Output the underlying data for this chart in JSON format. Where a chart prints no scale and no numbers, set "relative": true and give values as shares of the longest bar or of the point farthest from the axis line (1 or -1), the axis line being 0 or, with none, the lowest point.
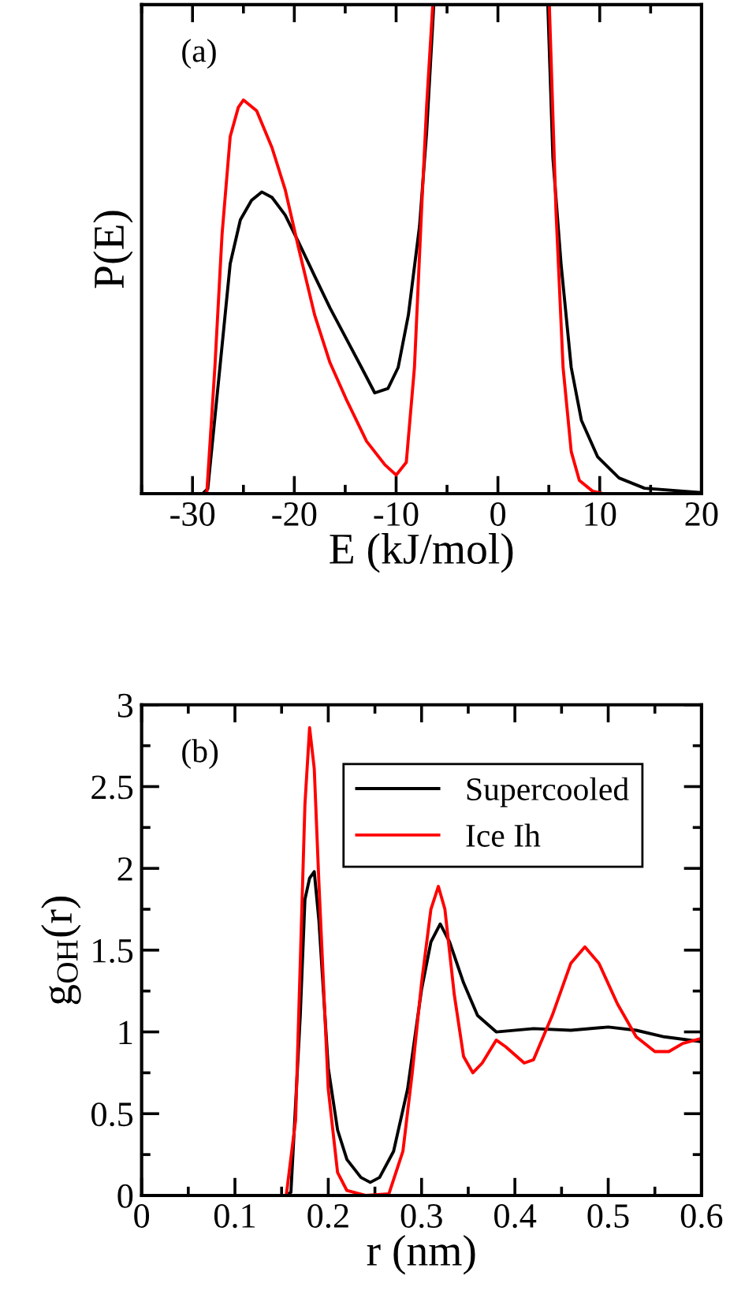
{
  "chart_data": [
    {
      "type": "line",
      "relative": true,
      "xlabel": "E (kJ/mol)",
      "ylabel": "P(E)",
      "xlim": [
        -35,
        20
      ],
      "xticks": [
        -30,
        -20,
        -10,
        0,
        10,
        20
      ],
      "tick_labels": "x",
      "grid": false,
      "legend": false,
      "annotations": [
        "(a)"
      ],
      "series": [
        {
          "color": "#000000",
          "x": [
            -35,
            -29,
            -28.5,
            -27.3,
            -26.3,
            -25.3,
            -24.2,
            -23.2,
            -22.2,
            -20.9,
            -19.6,
            -18.0,
            -16.5,
            -14.9,
            -13.4,
            -12.1,
            -10.8,
            -9.8,
            -8.8,
            -7.7,
            -7.0,
            -6.3,
            0,
            4.9,
            5.4,
            6.2,
            7.2,
            8.2,
            9.8,
            11.9,
            14.4,
            20
          ],
          "values": [
            0,
            0,
            0.01,
            0.26,
            0.47,
            0.56,
            0.6,
            0.617,
            0.606,
            0.57,
            0.515,
            0.445,
            0.38,
            0.317,
            0.258,
            0.206,
            0.215,
            0.258,
            0.365,
            0.547,
            0.74,
            1.0,
            null,
            1.0,
            0.687,
            0.47,
            0.258,
            0.15,
            0.075,
            0.032,
            0.011,
            0.002
          ]
        },
        {
          "color": "#ff0000",
          "x": [
            -35,
            -28.6,
            -27.8,
            -27.1,
            -26.3,
            -25.5,
            -25.0,
            -23.7,
            -22.2,
            -20.9,
            -19.6,
            -18.0,
            -16.5,
            -14.9,
            -12.9,
            -11.1,
            -10.0,
            -9.0,
            -8.2,
            -7.5,
            -7.0,
            -6.4,
            0,
            5.05,
            5.7,
            6.4,
            7.2,
            8.0,
            9.3,
            10.3,
            20
          ],
          "values": [
            0,
            0,
            0.26,
            0.53,
            0.73,
            0.79,
            0.805,
            0.783,
            0.708,
            0.622,
            0.504,
            0.365,
            0.268,
            0.193,
            0.107,
            0.059,
            0.038,
            0.064,
            0.258,
            0.58,
            0.794,
            1.0,
            null,
            1.0,
            0.58,
            0.258,
            0.086,
            0.027,
            0.005,
            0,
            0
          ]
        }
      ]
    },
    {
      "type": "line",
      "xlabel": "r (nm)",
      "ylabel": "g$_{OH}$(r)",
      "xlim": [
        0,
        0.6
      ],
      "xticks": [
        0,
        0.1,
        0.2,
        0.3,
        0.4,
        0.5,
        0.6
      ],
      "ylim": [
        0,
        3
      ],
      "yticks": [
        0,
        0.5,
        1,
        1.5,
        2,
        2.5,
        3
      ],
      "grid": false,
      "legend": "top right",
      "annotations": [
        "(b)"
      ],
      "series": [
        {
          "name": "Supercooled",
          "color": "#000000",
          "x": [
            0,
            0.155,
            0.16,
            0.17,
            0.175,
            0.18,
            0.185,
            0.19,
            0.2,
            0.21,
            0.22,
            0.235,
            0.245,
            0.255,
            0.27,
            0.285,
            0.3,
            0.31,
            0.32,
            0.33,
            0.345,
            0.36,
            0.38,
            0.42,
            0.46,
            0.5,
            0.53,
            0.56,
            0.6
          ],
          "values": [
            0,
            0,
            0.02,
            1.1,
            1.81,
            1.94,
            1.98,
            1.68,
            0.78,
            0.4,
            0.22,
            0.11,
            0.08,
            0.11,
            0.27,
            0.65,
            1.26,
            1.55,
            1.66,
            1.55,
            1.3,
            1.1,
            1.0,
            1.02,
            1.01,
            1.03,
            1.01,
            0.97,
            0.94
          ]
        },
        {
          "name": "Ice Ih",
          "color": "#ff0000",
          "x": [
            0.155,
            0.165,
            0.17,
            0.175,
            0.18,
            0.185,
            0.19,
            0.2,
            0.21,
            0.22,
            0.24,
            0.265,
            0.28,
            0.29,
            0.3,
            0.31,
            0.318,
            0.325,
            0.335,
            0.345,
            0.355,
            0.365,
            0.38,
            0.39,
            0.41,
            0.42,
            0.44,
            0.46,
            0.475,
            0.49,
            0.51,
            0.53,
            0.55,
            0.565,
            0.58,
            0.6
          ],
          "values": [
            0,
            0.46,
            1.42,
            2.39,
            2.86,
            2.61,
            1.91,
            0.65,
            0.14,
            0.03,
            0,
            0.01,
            0.27,
            0.75,
            1.3,
            1.75,
            1.89,
            1.75,
            1.23,
            0.85,
            0.75,
            0.81,
            0.95,
            0.91,
            0.81,
            0.83,
            1.1,
            1.42,
            1.52,
            1.42,
            1.17,
            0.97,
            0.88,
            0.88,
            0.93,
            0.96
          ]
        }
      ]
    }
  ]
}
